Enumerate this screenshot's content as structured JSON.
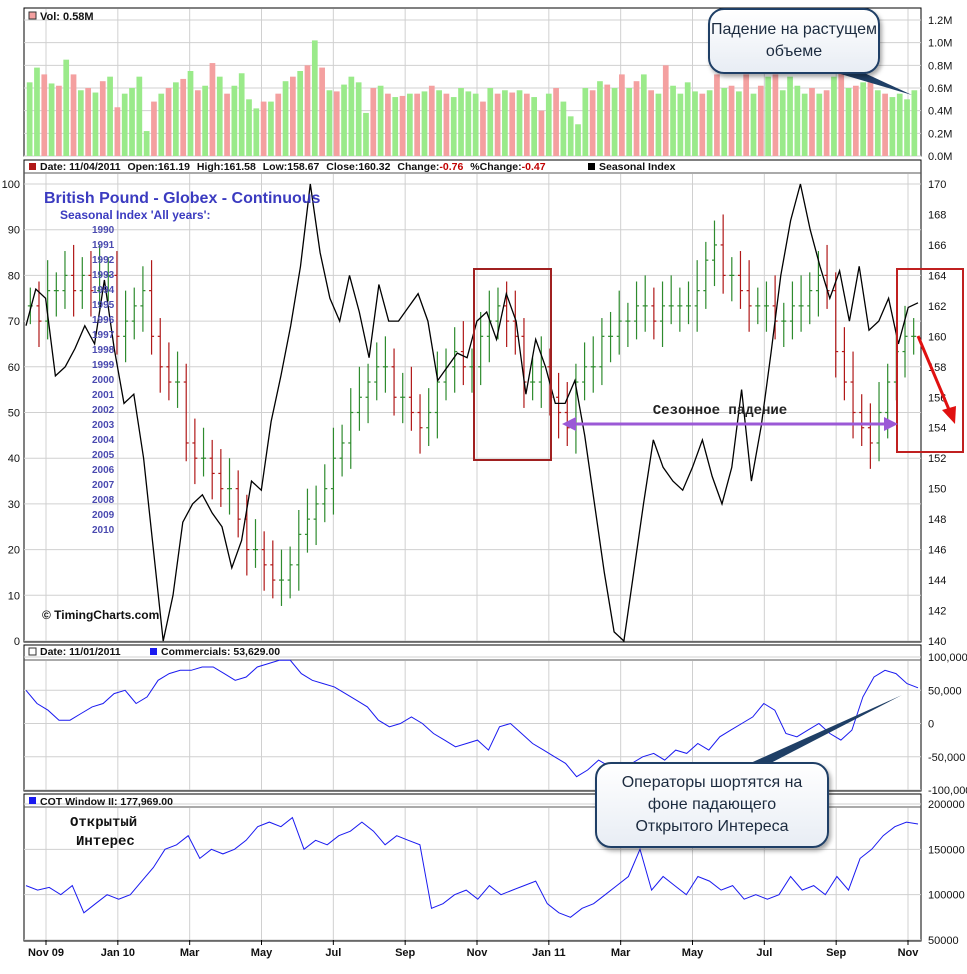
{
  "panels": {
    "volume": {
      "header": "Vol: 0.58M",
      "yticks": [
        "1.2M",
        "1.0M",
        "0.8M",
        "0.6M",
        "0.4M",
        "0.2M",
        "0.0M"
      ]
    },
    "price": {
      "header": {
        "date": "Date: 11/04/2011",
        "open": "Open:161.19",
        "high": "High:161.58",
        "low": "Low:158.67",
        "close": "Close:160.32",
        "change_label": "Change:",
        "change_value": "-0.76",
        "pct_label": "%Change:",
        "pct_value": "-0.47",
        "seasonal_label": "Seasonal Index"
      },
      "title": "British Pound - Globex - Continuous",
      "subtitle": "Seasonal Index 'All years':",
      "years": [
        "1990",
        "1991",
        "1992",
        "1993",
        "1994",
        "1995",
        "1996",
        "1997",
        "1998",
        "1999",
        "2000",
        "2001",
        "2002",
        "2003",
        "2004",
        "2005",
        "2006",
        "2007",
        "2008",
        "2009",
        "2010"
      ],
      "left_ticks": [
        "100",
        "90",
        "80",
        "70",
        "60",
        "50",
        "40",
        "30",
        "20",
        "10",
        "0"
      ],
      "right_ticks": [
        "170",
        "168",
        "166",
        "164",
        "162",
        "160",
        "158",
        "156",
        "154",
        "152",
        "150",
        "148",
        "146",
        "144",
        "142",
        "140"
      ],
      "copyright": "© TimingCharts.com",
      "annotation": "Сезонное падение"
    },
    "commercials": {
      "date": "Date: 11/01/2011",
      "label": "Commercials: 53,629.00",
      "yticks": [
        "100,000",
        "50,000",
        "0",
        "-50,000",
        "-100,000"
      ]
    },
    "cot": {
      "label": "COT Window II: 177,969.00",
      "note": "Открытый\nИнтерес",
      "yticks": [
        "200000",
        "150000",
        "100000",
        "50000"
      ]
    }
  },
  "x_axis": [
    "Nov 09",
    "Jan 10",
    "Mar",
    "May",
    "Jul",
    "Sep",
    "Nov",
    "Jan 11",
    "Mar",
    "May",
    "Jul",
    "Sep",
    "Nov"
  ],
  "callouts": {
    "volume": "Падение на растущем объеме",
    "operators": "Операторы шортятся на фоне падающего Открытого Интереса"
  },
  "colors": {
    "up": "#2e8b2e",
    "down": "#b01818",
    "vol_up": "#9aea8a",
    "vol_down": "#f4a0a0",
    "seasonal": "#000000",
    "commercials": "#1a1af0",
    "highlight_box": "#a02020",
    "arrow_purple": "#9b59d6",
    "arrow_red": "#e01010",
    "title": "#3b3bc0"
  },
  "chart_data": [
    {
      "type": "bar",
      "title": "Vol: 0.58M",
      "ylim": [
        0,
        1.2
      ],
      "unit": "M",
      "series": [
        {
          "name": "Vol",
          "values": [
            0.65,
            0.78,
            0.72,
            0.64,
            0.62,
            0.85,
            0.72,
            0.58,
            0.6,
            0.56,
            0.66,
            0.7,
            0.43,
            0.55,
            0.6,
            0.7,
            0.22,
            0.48,
            0.55,
            0.6,
            0.65,
            0.68,
            0.75,
            0.58,
            0.62,
            0.82,
            0.7,
            0.55,
            0.62,
            0.73,
            0.5,
            0.42,
            0.48,
            0.48,
            0.55,
            0.66,
            0.7,
            0.75,
            0.8,
            1.02,
            0.78,
            0.58,
            0.57,
            0.63,
            0.7,
            0.65,
            0.38,
            0.6,
            0.62,
            0.55,
            0.52,
            0.53,
            0.55,
            0.55,
            0.57,
            0.62,
            0.58,
            0.55,
            0.52,
            0.6,
            0.57,
            0.55,
            0.48,
            0.6,
            0.55,
            0.58,
            0.56,
            0.58,
            0.55,
            0.52,
            0.4,
            0.55,
            0.6,
            0.48,
            0.35,
            0.28,
            0.6,
            0.58,
            0.66,
            0.63,
            0.6,
            0.72,
            0.6,
            0.66,
            0.72,
            0.58,
            0.55,
            0.8,
            0.62,
            0.55,
            0.65,
            0.57,
            0.55,
            0.58,
            0.72,
            0.6,
            0.62,
            0.57,
            0.72,
            0.55,
            0.62,
            0.7,
            0.72,
            0.58,
            0.7,
            0.62,
            0.55,
            0.6,
            0.55,
            0.58,
            0.7,
            0.78,
            0.6,
            0.62,
            0.65,
            0.7,
            0.58,
            0.55,
            0.52,
            0.55,
            0.5,
            0.58
          ]
        }
      ]
    },
    {
      "type": "line",
      "title": "British Pound - Globex - Continuous",
      "y_left_lim": [
        0,
        100
      ],
      "y_right_lim": [
        140,
        170
      ],
      "x_labels": [
        "Nov 09",
        "Jan 10",
        "Mar",
        "May",
        "Jul",
        "Sep",
        "Nov",
        "Jan 11",
        "Mar",
        "May",
        "Jul",
        "Sep",
        "Nov"
      ],
      "series": [
        {
          "name": "Seasonal Index",
          "axis": "left",
          "values": [
            69,
            77,
            75,
            58,
            60,
            64,
            69,
            65,
            79,
            64,
            52,
            54,
            40,
            20,
            0,
            10,
            26,
            30,
            32,
            28,
            25,
            16,
            22,
            35,
            33,
            48,
            58,
            69,
            82,
            100,
            85,
            75,
            70,
            80,
            72,
            62,
            78,
            70,
            70,
            73,
            76,
            70,
            57,
            60,
            63,
            62,
            70,
            72,
            66,
            76,
            70,
            54,
            66,
            60,
            52,
            52,
            57,
            45,
            30,
            15,
            2,
            0,
            15,
            30,
            44,
            38,
            35,
            33,
            38,
            44,
            36,
            30,
            38,
            55,
            35,
            47,
            63,
            80,
            92,
            100,
            90,
            82,
            75,
            81,
            70,
            82,
            68,
            70,
            75,
            65,
            73,
            74
          ]
        },
        {
          "name": "Price (bars)",
          "axis": "right",
          "values": [
            162,
            161,
            163,
            163,
            164,
            163,
            164,
            163,
            164,
            164,
            160,
            161,
            162,
            163,
            160,
            158,
            157,
            157,
            153,
            152,
            152,
            151,
            150,
            150,
            148,
            146,
            146,
            145,
            144,
            144,
            145,
            147,
            148,
            149,
            150,
            152,
            153,
            155,
            156,
            157,
            158,
            158,
            156,
            156,
            155,
            154,
            155,
            157,
            158,
            159,
            158,
            158,
            160,
            161,
            162,
            161,
            160,
            157,
            157,
            158,
            156,
            155,
            154,
            157,
            158,
            158,
            160,
            160,
            161,
            161,
            162,
            162,
            161,
            162,
            162,
            162,
            162,
            163,
            165,
            166,
            164,
            164,
            163,
            162,
            162,
            162,
            161,
            161,
            162,
            162,
            163,
            164,
            163,
            159,
            157,
            155,
            154,
            153,
            155,
            157,
            159,
            160,
            160
          ]
        }
      ],
      "annotation": "Сезонное падение"
    },
    {
      "type": "line",
      "title": "Commercials: 53,629.00",
      "ylim": [
        -100000,
        100000
      ],
      "series": [
        {
          "name": "Commercials",
          "values": [
            50000,
            30000,
            20000,
            5000,
            5000,
            15000,
            25000,
            30000,
            45000,
            50000,
            30000,
            40000,
            65000,
            75000,
            80000,
            80000,
            85000,
            85000,
            75000,
            65000,
            70000,
            85000,
            90000,
            95000,
            95000,
            75000,
            65000,
            60000,
            55000,
            45000,
            35000,
            25000,
            5000,
            -5000,
            0,
            10000,
            0,
            -15000,
            -25000,
            -35000,
            -30000,
            -25000,
            -40000,
            -5000,
            0,
            -15000,
            -30000,
            -40000,
            -50000,
            -60000,
            -80000,
            -70000,
            -55000,
            -65000,
            -70000,
            -60000,
            -50000,
            -45000,
            -55000,
            -40000,
            -45000,
            -30000,
            -40000,
            -20000,
            -10000,
            0,
            10000,
            30000,
            20000,
            -15000,
            -20000,
            -10000,
            0,
            -15000,
            -25000,
            -10000,
            40000,
            70000,
            80000,
            75000,
            60000,
            53629
          ]
        }
      ]
    },
    {
      "type": "line",
      "title": "COT Window II: 177,969.00",
      "ylim": [
        50000,
        200000
      ],
      "series": [
        {
          "name": "COT Window II",
          "values": [
            110000,
            105000,
            108000,
            100000,
            110000,
            80000,
            90000,
            100000,
            95000,
            100000,
            115000,
            130000,
            150000,
            155000,
            165000,
            140000,
            150000,
            145000,
            150000,
            160000,
            175000,
            180000,
            175000,
            185000,
            150000,
            160000,
            155000,
            165000,
            170000,
            180000,
            170000,
            155000,
            165000,
            160000,
            155000,
            85000,
            90000,
            100000,
            105000,
            95000,
            110000,
            100000,
            105000,
            110000,
            115000,
            90000,
            80000,
            75000,
            85000,
            90000,
            100000,
            110000,
            120000,
            150000,
            105000,
            120000,
            110000,
            100000,
            120000,
            115000,
            105000,
            110000,
            95000,
            100000,
            95000,
            100000,
            120000,
            105000,
            110000,
            100000,
            120000,
            105000,
            140000,
            150000,
            165000,
            175000,
            180000,
            177969
          ]
        }
      ]
    }
  ]
}
